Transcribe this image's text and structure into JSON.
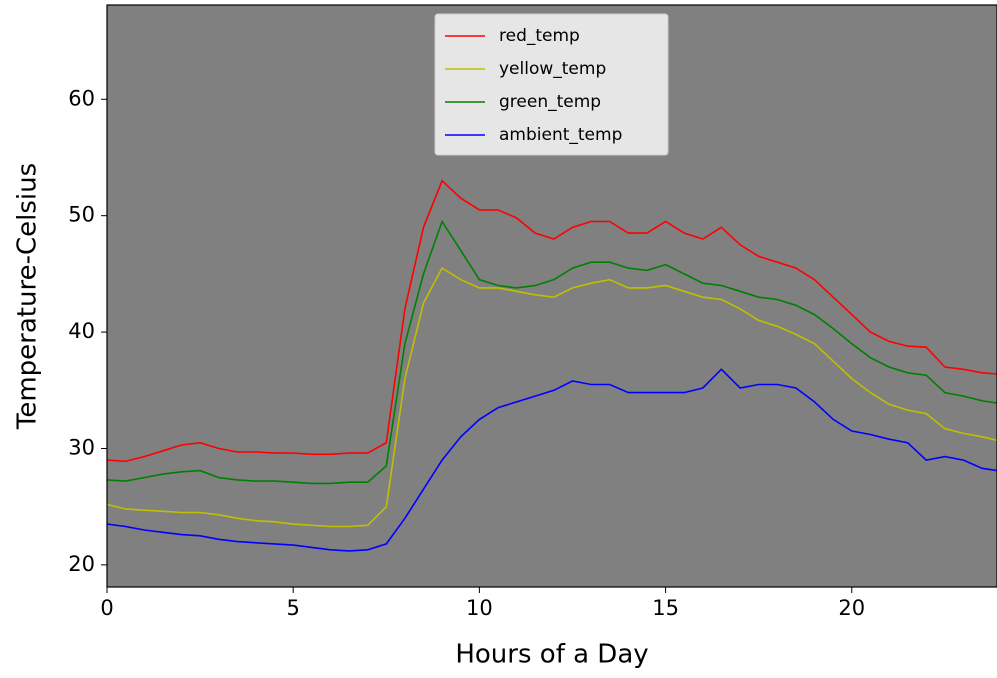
{
  "chart_data": {
    "type": "line",
    "x_label": "Hours of a Day",
    "y_label": "Temperature-Celsius",
    "x": [
      0,
      0.5,
      1,
      1.5,
      2,
      2.5,
      3,
      3.5,
      4,
      4.5,
      5,
      5.5,
      6,
      6.5,
      7,
      7.5,
      8,
      8.5,
      9,
      9.5,
      10,
      10.5,
      11,
      11.5,
      12,
      12.5,
      13,
      13.5,
      14,
      14.5,
      15,
      15.5,
      16,
      16.5,
      17,
      17.5,
      18,
      18.5,
      19,
      19.5,
      20,
      20.5,
      21,
      21.5,
      22,
      22.5,
      23,
      23.5,
      23.9
    ],
    "series": [
      {
        "name": "red_temp",
        "color": "#ff0000",
        "values": [
          29,
          28.9,
          29.3,
          29.8,
          30.3,
          30.5,
          30,
          29.7,
          29.7,
          29.6,
          29.6,
          29.5,
          29.5,
          29.6,
          29.6,
          30.5,
          42,
          49,
          53,
          51.5,
          50.5,
          50.5,
          49.8,
          48.5,
          48,
          49,
          49.5,
          49.5,
          48.5,
          48.5,
          49.5,
          48.5,
          48,
          49,
          47.5,
          46.5,
          46,
          45.5,
          44.5,
          43,
          41.5,
          40,
          39.2,
          38.8,
          38.7,
          37,
          36.8,
          36.5,
          36.4
        ]
      },
      {
        "name": "yellow_temp",
        "color": "#bfbf00",
        "values": [
          25.2,
          24.8,
          24.7,
          24.6,
          24.5,
          24.5,
          24.3,
          24,
          23.8,
          23.7,
          23.5,
          23.4,
          23.3,
          23.3,
          23.4,
          25,
          36,
          42.5,
          45.5,
          44.5,
          43.8,
          43.8,
          43.5,
          43.2,
          43,
          43.8,
          44.2,
          44.5,
          43.8,
          43.8,
          44,
          43.5,
          43,
          42.8,
          42,
          41,
          40.5,
          39.8,
          39,
          37.5,
          36,
          34.8,
          33.8,
          33.3,
          33,
          31.7,
          31.3,
          31,
          30.7
        ]
      },
      {
        "name": "green_temp",
        "color": "#008000",
        "values": [
          27.3,
          27.2,
          27.5,
          27.8,
          28,
          28.1,
          27.5,
          27.3,
          27.2,
          27.2,
          27.1,
          27,
          27,
          27.1,
          27.1,
          28.5,
          39,
          45,
          49.5,
          47,
          44.5,
          44,
          43.8,
          44,
          44.5,
          45.5,
          46,
          46,
          45.5,
          45.3,
          45.8,
          45,
          44.2,
          44,
          43.5,
          43,
          42.8,
          42.3,
          41.5,
          40.3,
          39,
          37.8,
          37,
          36.5,
          36.3,
          34.8,
          34.5,
          34.1,
          33.9
        ]
      },
      {
        "name": "ambient_temp",
        "color": "#0000ff",
        "values": [
          23.5,
          23.3,
          23,
          22.8,
          22.6,
          22.5,
          22.2,
          22,
          21.9,
          21.8,
          21.7,
          21.5,
          21.3,
          21.2,
          21.3,
          21.8,
          24,
          26.5,
          29,
          31,
          32.5,
          33.5,
          34,
          34.5,
          35,
          35.8,
          35.5,
          35.5,
          34.8,
          34.8,
          34.8,
          34.8,
          35.2,
          36.8,
          35.2,
          35.5,
          35.5,
          35.2,
          34,
          32.5,
          31.5,
          31.2,
          30.8,
          30.5,
          29,
          29.3,
          29,
          28.3,
          28.1
        ]
      }
    ],
    "xlim": [
      0,
      23.9
    ],
    "ylim": [
      18.1,
      68.1
    ],
    "xticks": [
      0,
      5,
      10,
      15,
      20
    ],
    "yticks": [
      20,
      30,
      40,
      50,
      60
    ],
    "background": "#808080",
    "legend": "upper center"
  }
}
